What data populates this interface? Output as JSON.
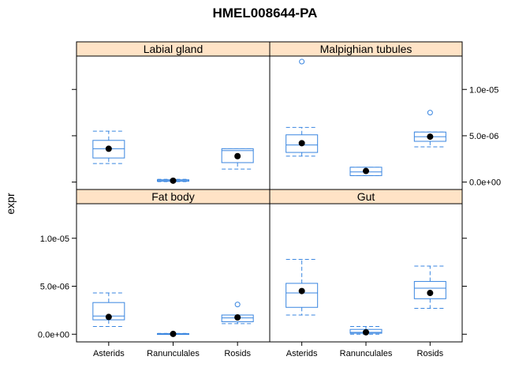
{
  "chart_data": {
    "type": "box",
    "title": "HMEL008644-PA",
    "ylabel": "expr",
    "xlabel": "",
    "categories": [
      "Asterids",
      "Ranunculales",
      "Rosids"
    ],
    "y_ticks": [
      0,
      5e-06,
      1e-05
    ],
    "y_tick_labels": [
      "0.0e+00",
      "5.0e-06",
      "1.0e-05"
    ],
    "ylim": [
      -8e-07,
      1.36e-05
    ],
    "colors": {
      "box": "#3a86e0",
      "mean": "#000000",
      "strip_bg": "#ffe3c6"
    },
    "panels": [
      {
        "name": "Labial gland",
        "boxes": [
          {
            "category": "Asterids",
            "q1": 2.6e-06,
            "median": 3.6e-06,
            "q3": 4.5e-06,
            "whisker_low": 2e-06,
            "whisker_high": 5.5e-06,
            "mean": 3.6e-06,
            "outliers": []
          },
          {
            "category": "Ranunculales",
            "q1": 1e-07,
            "median": 1.5e-07,
            "q3": 2.5e-07,
            "whisker_low": 5e-08,
            "whisker_high": 3e-07,
            "mean": 1.5e-07,
            "outliers": []
          },
          {
            "category": "Rosids",
            "q1": 2.1e-06,
            "median": 3.4e-06,
            "q3": 3.6e-06,
            "whisker_low": 1.4e-06,
            "whisker_high": 3.6e-06,
            "mean": 2.8e-06,
            "outliers": []
          }
        ]
      },
      {
        "name": "Malpighian tubules",
        "boxes": [
          {
            "category": "Asterids",
            "q1": 3.2e-06,
            "median": 4e-06,
            "q3": 5.1e-06,
            "whisker_low": 2.8e-06,
            "whisker_high": 5.9e-06,
            "mean": 4.2e-06,
            "outliers": [
              1.3e-05
            ]
          },
          {
            "category": "Ranunculales",
            "q1": 7e-07,
            "median": 1.1e-06,
            "q3": 1.6e-06,
            "whisker_low": 7e-07,
            "whisker_high": 1.6e-06,
            "mean": 1.2e-06,
            "outliers": []
          },
          {
            "category": "Rosids",
            "q1": 4.4e-06,
            "median": 4.9e-06,
            "q3": 5.4e-06,
            "whisker_low": 3.8e-06,
            "whisker_high": 5.4e-06,
            "mean": 4.9e-06,
            "outliers": [
              7.5e-06
            ]
          }
        ]
      },
      {
        "name": "Fat body",
        "boxes": [
          {
            "category": "Asterids",
            "q1": 1.5e-06,
            "median": 1.9e-06,
            "q3": 3.3e-06,
            "whisker_low": 8e-07,
            "whisker_high": 4.3e-06,
            "mean": 1.8e-06,
            "outliers": []
          },
          {
            "category": "Ranunculales",
            "q1": 0,
            "median": 3e-08,
            "q3": 6e-08,
            "whisker_low": 0,
            "whisker_high": 8e-08,
            "mean": 3e-08,
            "outliers": []
          },
          {
            "category": "Rosids",
            "q1": 1.3e-06,
            "median": 1.7e-06,
            "q3": 2e-06,
            "whisker_low": 1.1e-06,
            "whisker_high": 2e-06,
            "mean": 1.75e-06,
            "outliers": [
              3.1e-06
            ]
          }
        ]
      },
      {
        "name": "Gut",
        "boxes": [
          {
            "category": "Asterids",
            "q1": 2.8e-06,
            "median": 4.3e-06,
            "q3": 5.3e-06,
            "whisker_low": 2e-06,
            "whisker_high": 7.8e-06,
            "mean": 4.5e-06,
            "outliers": []
          },
          {
            "category": "Ranunculales",
            "q1": 1e-07,
            "median": 2e-07,
            "q3": 5e-07,
            "whisker_low": 0,
            "whisker_high": 8e-07,
            "mean": 2e-07,
            "outliers": []
          },
          {
            "category": "Rosids",
            "q1": 3.7e-06,
            "median": 4.8e-06,
            "q3": 5.5e-06,
            "whisker_low": 2.7e-06,
            "whisker_high": 7.1e-06,
            "mean": 4.3e-06,
            "outliers": []
          }
        ]
      }
    ]
  }
}
